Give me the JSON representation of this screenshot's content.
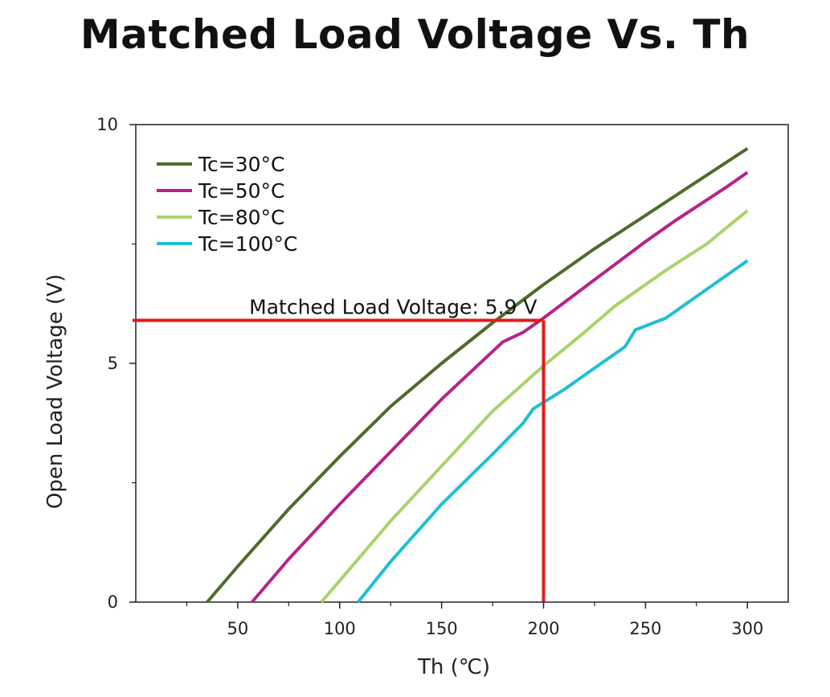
{
  "chart_data": {
    "type": "line",
    "title": "Matched Load Voltage Vs. Th",
    "xlabel": "Th (℃)",
    "ylabel": "Open Load Voltage (V)",
    "xlim": [
      0,
      320
    ],
    "ylim": [
      0,
      10
    ],
    "x_ticks": [
      50,
      100,
      150,
      200,
      250,
      300
    ],
    "x_tick_labels": [
      "50",
      "100",
      "150",
      "200",
      "250",
      "300"
    ],
    "x_minor_ticks": [
      25,
      75,
      125,
      175,
      225,
      275
    ],
    "y_ticks": [
      0,
      5,
      10
    ],
    "y_tick_labels": [
      "0",
      "5",
      "10"
    ],
    "y_minor_ticks": [
      2.5,
      7.5
    ],
    "grid": false,
    "legend_position": "top-left",
    "series": [
      {
        "name": "Tc=30°C",
        "color": "#4e6b2a",
        "x": [
          35,
          50,
          75,
          100,
          125,
          150,
          175,
          200,
          225,
          250,
          275,
          300
        ],
        "y": [
          0,
          0.75,
          1.95,
          3.05,
          4.1,
          5.0,
          5.85,
          6.65,
          7.4,
          8.1,
          8.8,
          9.5
        ]
      },
      {
        "name": "Tc=50°C",
        "color": "#b5228a",
        "x": [
          57,
          75,
          100,
          125,
          150,
          180,
          190,
          200,
          225,
          250,
          265,
          290,
          300
        ],
        "y": [
          0,
          0.9,
          2.05,
          3.15,
          4.25,
          5.45,
          5.65,
          5.95,
          6.75,
          7.55,
          8.0,
          8.7,
          9.0
        ]
      },
      {
        "name": "Tc=80°C",
        "color": "#a8d36c",
        "x": [
          91,
          100,
          125,
          150,
          175,
          200,
          220,
          235,
          260,
          280,
          300
        ],
        "y": [
          0,
          0.45,
          1.7,
          2.85,
          4.0,
          4.95,
          5.65,
          6.2,
          6.95,
          7.5,
          8.2
        ]
      },
      {
        "name": "Tc=100°C",
        "color": "#1fbfd4",
        "x": [
          109,
          125,
          150,
          175,
          190,
          195,
          210,
          225,
          240,
          245,
          260,
          280,
          300
        ],
        "y": [
          0,
          0.85,
          2.05,
          3.1,
          3.75,
          4.05,
          4.45,
          4.9,
          5.35,
          5.7,
          5.95,
          6.55,
          7.15
        ]
      }
    ],
    "annotations": [
      {
        "type": "reference-lines",
        "text": "Matched Load Voltage: 5.9 V",
        "color": "#e11a1a",
        "x": 200,
        "y": 5.9
      }
    ]
  }
}
